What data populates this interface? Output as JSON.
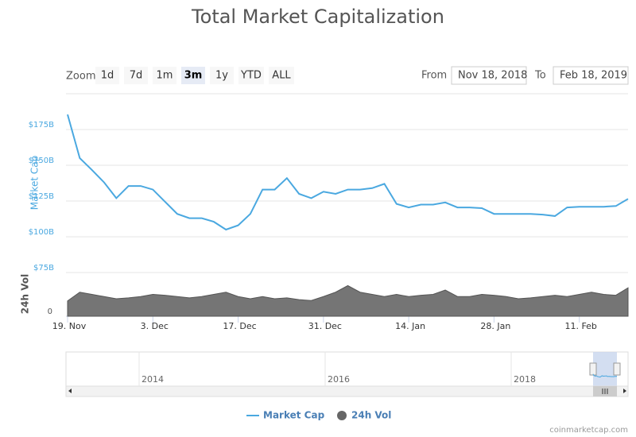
{
  "chart_data": {
    "type": "line",
    "title": "Total Market Capitalization",
    "zoom_label": "Zoom",
    "range_buttons": [
      "1d",
      "7d",
      "1m",
      "3m",
      "1y",
      "YTD",
      "ALL"
    ],
    "selected_range": 3,
    "from_label": "From",
    "from": "Nov 18, 2018",
    "to_label": "To",
    "to": "Feb 18, 2019",
    "categories": [
      "19. Nov",
      null,
      null,
      null,
      null,
      null,
      null,
      "3. Dec",
      null,
      null,
      null,
      null,
      null,
      null,
      "17. Dec",
      null,
      null,
      null,
      null,
      null,
      null,
      "31. Dec",
      null,
      null,
      null,
      null,
      null,
      null,
      "14. Jan",
      null,
      null,
      null,
      null,
      null,
      null,
      "28. Jan",
      null,
      null,
      null,
      null,
      null,
      null,
      "11. Feb",
      null,
      null,
      null,
      null
    ],
    "ylabel": "Market Cap",
    "y2label": "24h Vol",
    "ylim": [
      75,
      200
    ],
    "yticks": [
      {
        "value": 75,
        "label": "$75B"
      },
      {
        "value": 100,
        "label": "$100B"
      },
      {
        "value": 125,
        "label": "$125B"
      },
      {
        "value": 150,
        "label": "$150B"
      },
      {
        "value": 175,
        "label": "$175B"
      }
    ],
    "y2lim": [
      0,
      100
    ],
    "y2ticks": [
      0
    ],
    "grid": true,
    "series": [
      {
        "name": "Market Cap",
        "color": "#4aa8e0",
        "values": [
          185.5,
          155,
          146.7,
          138,
          127,
          135.5,
          135.5,
          133,
          124.5,
          116,
          113,
          113,
          110.5,
          105,
          108,
          116,
          133,
          133,
          141,
          130,
          127,
          131.5,
          130,
          133,
          133,
          134,
          137,
          123,
          120.5,
          122.5,
          122.5,
          124,
          120.5,
          120.5,
          120,
          116,
          116,
          116,
          116,
          115.5,
          114.5,
          120.5,
          121,
          121,
          121,
          121.5,
          126.5
        ]
      },
      {
        "name": "24h Vol",
        "color": "#666666",
        "axis": "y2",
        "values": [
          35,
          55,
          50,
          45,
          40,
          42,
          45,
          50,
          48,
          45,
          42,
          45,
          50,
          55,
          45,
          40,
          45,
          40,
          42,
          38,
          36,
          45,
          55,
          70,
          55,
          50,
          45,
          50,
          45,
          48,
          50,
          60,
          45,
          45,
          50,
          48,
          45,
          40,
          42,
          45,
          48,
          45,
          50,
          55,
          50,
          48,
          65
        ]
      }
    ],
    "navigator_labels": [
      "2014",
      "2016",
      "2018"
    ],
    "credit": "coinmarketcap.com"
  }
}
